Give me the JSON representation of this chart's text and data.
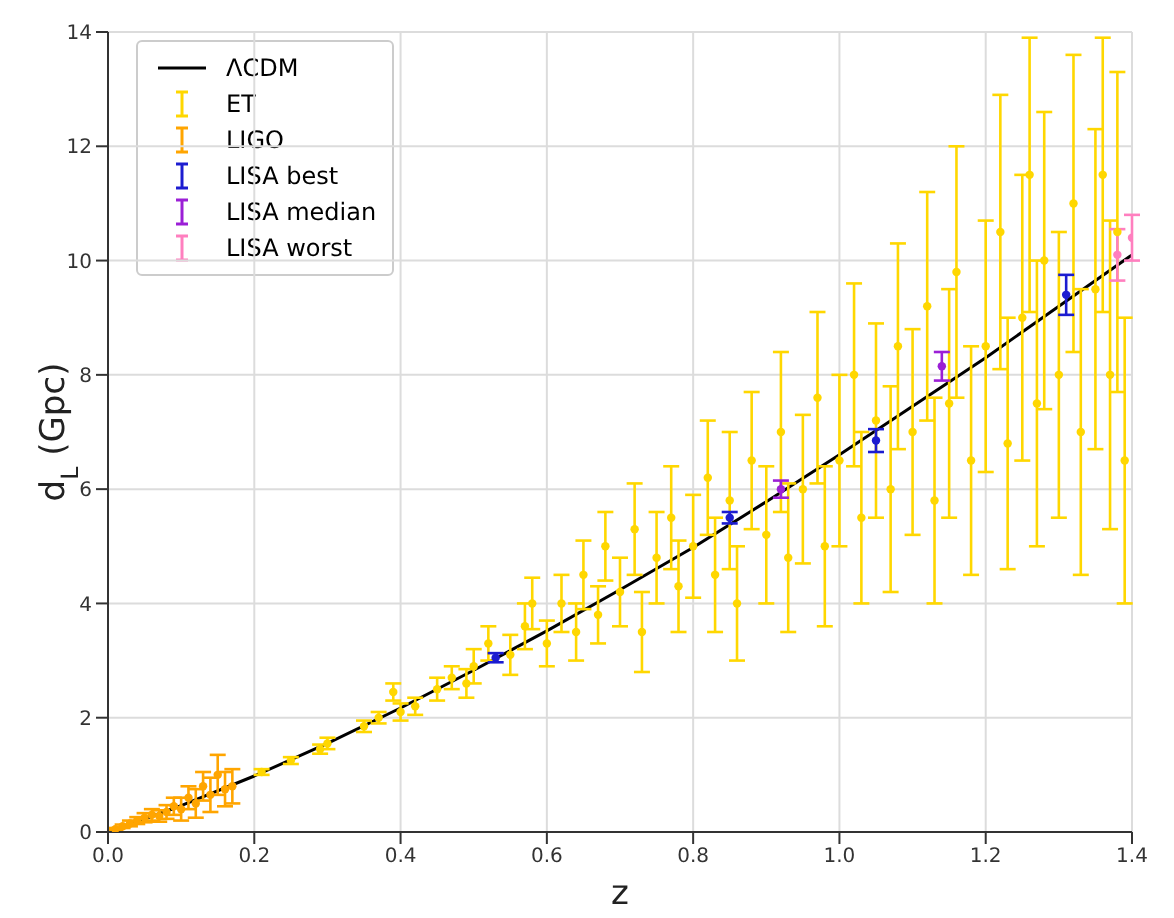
{
  "chart_data": {
    "type": "scatter",
    "xlabel": "z",
    "ylabel": "d$_{L}$ (Gpc)",
    "xlim": [
      0,
      1.4
    ],
    "ylim": [
      0,
      14
    ],
    "xticks": [
      {
        "value": 0,
        "label": "0.0"
      },
      0.2,
      0.4,
      0.6,
      0.8,
      {
        "value": 1,
        "label": "1.0"
      },
      1.2,
      1.4
    ],
    "yticks": [
      0,
      2,
      4,
      6,
      8,
      10,
      12,
      14
    ],
    "grid": true,
    "legend": "top left",
    "marker": "circle",
    "series": [
      {
        "name": "ΛCDM",
        "type": "line",
        "marker": "none",
        "color": "#000000",
        "line_style": "solid",
        "x": [
          0,
          0.1,
          0.2,
          0.3,
          0.4,
          0.5,
          0.6,
          0.7,
          0.8,
          0.9,
          1,
          1.1,
          1.2,
          1.3,
          1.4
        ],
        "values": [
          0,
          0.46,
          0.98,
          1.55,
          2.17,
          2.83,
          3.52,
          4.24,
          4.98,
          5.78,
          6.6,
          7.45,
          8.3,
          9.2,
          10.1
        ]
      },
      {
        "name": "ET",
        "color": "#ffd700",
        "x": [
          0.21,
          0.25,
          0.29,
          0.3,
          0.35,
          0.37,
          0.39,
          0.4,
          0.42,
          0.45,
          0.47,
          0.49,
          0.5,
          0.52,
          0.55,
          0.57,
          0.58,
          0.6,
          0.62,
          0.64,
          0.65,
          0.67,
          0.68,
          0.7,
          0.72,
          0.73,
          0.75,
          0.77,
          0.78,
          0.8,
          0.82,
          0.83,
          0.85,
          0.86,
          0.88,
          0.9,
          0.92,
          0.93,
          0.95,
          0.97,
          0.98,
          1,
          1.02,
          1.03,
          1.05,
          1.07,
          1.08,
          1.1,
          1.12,
          1.13,
          1.15,
          1.16,
          1.18,
          1.2,
          1.22,
          1.23,
          1.25,
          1.26,
          1.27,
          1.28,
          1.3,
          1.32,
          1.33,
          1.35,
          1.36,
          1.37,
          1.38,
          1.39
        ],
        "values": [
          1.05,
          1.25,
          1.45,
          1.55,
          1.85,
          2,
          2.45,
          2.1,
          2.2,
          2.5,
          2.7,
          2.6,
          2.9,
          3.3,
          3.1,
          3.6,
          4,
          3.3,
          4,
          3.5,
          4.5,
          3.8,
          5,
          4.2,
          5.3,
          3.5,
          4.8,
          5.5,
          4.3,
          5,
          6.2,
          4.5,
          5.8,
          4,
          6.5,
          5.2,
          7,
          4.8,
          6,
          7.6,
          5,
          6.5,
          8,
          5.5,
          7.2,
          6,
          8.5,
          7,
          9.2,
          5.8,
          7.5,
          9.8,
          6.5,
          8.5,
          10.5,
          6.8,
          9,
          11.5,
          7.5,
          10,
          8,
          11,
          7,
          9.5,
          11.5,
          8,
          10.5,
          6.5
        ],
        "errors": [
          0.05,
          0.06,
          0.08,
          0.1,
          0.1,
          0.1,
          0.15,
          0.15,
          0.15,
          0.2,
          0.2,
          0.25,
          0.3,
          0.3,
          0.35,
          0.4,
          0.45,
          0.4,
          0.5,
          0.5,
          0.6,
          0.5,
          0.6,
          0.6,
          0.8,
          0.7,
          0.8,
          0.9,
          0.8,
          0.9,
          1,
          1,
          1.2,
          1,
          1.2,
          1.2,
          1.4,
          1.3,
          1.3,
          1.5,
          1.4,
          1.5,
          1.6,
          1.5,
          1.7,
          1.8,
          1.8,
          1.8,
          2,
          1.8,
          2,
          2.2,
          2,
          2.2,
          2.4,
          2.2,
          2.5,
          2.4,
          2.5,
          2.6,
          2.5,
          2.6,
          2.5,
          2.8,
          2.4,
          2.7,
          2.8,
          2.5
        ]
      },
      {
        "name": "LIGO",
        "color": "#ffa500",
        "x": [
          0.01,
          0.02,
          0.03,
          0.04,
          0.05,
          0.06,
          0.07,
          0.08,
          0.09,
          0.1,
          0.11,
          0.12,
          0.13,
          0.14,
          0.15,
          0.16,
          0.17
        ],
        "values": [
          0.05,
          0.1,
          0.15,
          0.2,
          0.25,
          0.3,
          0.28,
          0.35,
          0.45,
          0.4,
          0.6,
          0.5,
          0.8,
          0.65,
          1,
          0.75,
          0.8
        ],
        "errors": [
          0.02,
          0.03,
          0.05,
          0.06,
          0.08,
          0.1,
          0.1,
          0.12,
          0.15,
          0.2,
          0.2,
          0.25,
          0.25,
          0.3,
          0.35,
          0.3,
          0.3
        ]
      },
      {
        "name": "LISA best",
        "color": "#1c1cd0",
        "x": [
          0.53,
          0.85,
          1.05,
          1.31
        ],
        "values": [
          3.05,
          5.5,
          6.85,
          9.4
        ],
        "errors": [
          0.08,
          0.1,
          0.2,
          0.35
        ]
      },
      {
        "name": "LISA median",
        "color": "#9b1fd6",
        "x": [
          0.92,
          1.14
        ],
        "values": [
          6,
          8.15
        ],
        "errors": [
          0.15,
          0.25
        ]
      },
      {
        "name": "LISA worst",
        "color": "#ff7fbf",
        "x": [
          1.38,
          1.4
        ],
        "values": [
          10.1,
          10.4
        ],
        "errors": [
          0.45,
          0.4
        ]
      }
    ]
  }
}
